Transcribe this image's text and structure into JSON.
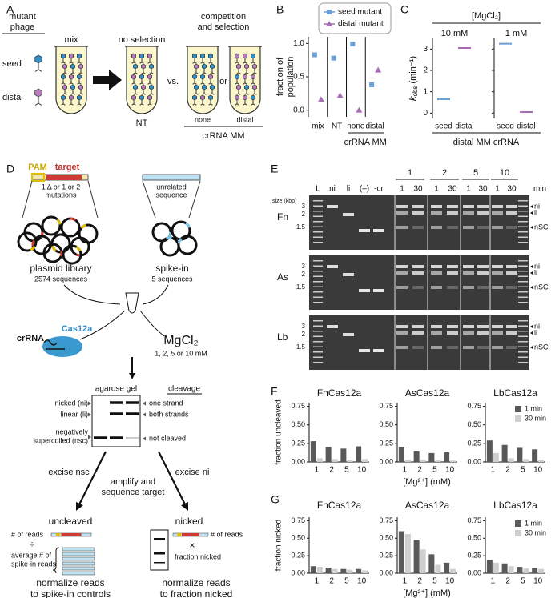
{
  "panel_labels": [
    "A",
    "B",
    "C",
    "D",
    "E",
    "F",
    "G"
  ],
  "panel_a": {
    "mutant_phage": [
      "mutant",
      "phage"
    ],
    "seed": "seed",
    "distal": "distal",
    "mix": "mix",
    "no_selection": "no selection",
    "vs": "vs.",
    "competition": [
      "competition",
      "and selection"
    ],
    "or": "or",
    "nt": "NT",
    "none": "none",
    "distal_mm": "distal",
    "crrna_mm": "crRNA MM"
  },
  "panel_d": {
    "pam": "PAM",
    "target": "target",
    "mutations": [
      "1 Δ or 1 or 2",
      "mutations"
    ],
    "unrelated": [
      "unrelated",
      "sequence"
    ],
    "library": "plasmid library",
    "library_count": "2574 sequences",
    "spike_in": "spike-in",
    "spike_count": "5 sequences",
    "crrna": "crRNA",
    "cas12a": "Cas12a",
    "mgcl2": "MgCl₂",
    "mg_conc": "1, 2, 5 or 10 mM",
    "gel_title": "agarose gel",
    "cleavage": "cleavage",
    "gel_bands": [
      "nicked (ni)",
      "linear (li)",
      "negatively",
      "supercoiled (nsc)"
    ],
    "cleavage_types": [
      "one strand",
      "both strands",
      "not cleaved"
    ],
    "excise_nsc": "excise nsc",
    "excise_ni": "excise ni",
    "amplify": [
      "amplify and",
      "sequence target"
    ],
    "uncleaved": "uncleaved",
    "nicked": "nicked",
    "reads_left": "# of reads",
    "divide": "÷",
    "spike_reads": [
      "average # of",
      "spike-in reads"
    ],
    "reads_right": "# of reads",
    "times": "×",
    "fraction_nicked": "fraction nicked",
    "norm_left": [
      "normalize reads",
      "to spike-in controls"
    ],
    "norm_right": [
      "normalize reads",
      "to fraction nicked"
    ]
  },
  "panel_e": {
    "groups": [
      "1",
      "2",
      "5",
      "10"
    ],
    "lanes": [
      "L",
      "ni",
      "li",
      "(–)",
      "-cr",
      "1",
      "30",
      "1",
      "30",
      "1",
      "30",
      "1",
      "30"
    ],
    "min": "min",
    "size_label": "size (kbp)",
    "rows": [
      "Fn",
      "As",
      "Lb"
    ],
    "sizes": [
      "3",
      "2",
      "1.5"
    ],
    "bands": [
      "ni",
      "li",
      "nSC"
    ]
  },
  "chart_data": [
    {
      "type": "dot",
      "ylabel": [
        "fraction of",
        "population"
      ],
      "categories": [
        "mix",
        "NT",
        "none",
        "distal"
      ],
      "group_label": "crRNA MM",
      "ylim": [
        -0.1,
        1.1
      ],
      "yticks": [
        {
          "value": 0,
          "label": "0.0"
        },
        {
          "value": 0.5,
          "label": "0.5"
        },
        {
          "value": 1,
          "label": "1.0"
        }
      ],
      "series": [
        {
          "name": "seed mutant",
          "color": "#6a9fd8",
          "values": [
            0.83,
            0.78,
            0.99,
            0.38
          ]
        },
        {
          "name": "distal mutant",
          "color": "#a86bb5",
          "values": [
            0.16,
            0.22,
            0.0,
            0.6
          ]
        }
      ]
    },
    {
      "type": "dot",
      "title": "[MgCl₂]",
      "ylabel": [
        "k",
        "obs",
        " (min⁻¹)"
      ],
      "xlabel": "distal MM crRNA",
      "categories": [
        "seed",
        "distal"
      ],
      "colors": [
        "#6a9fd8",
        "#a86bb5"
      ],
      "ylim": [
        -0.25,
        3.5
      ],
      "yticks": [
        0,
        1,
        2,
        3
      ],
      "subplots": [
        {
          "title": "10 mM",
          "values": [
            0.65,
            3.05
          ]
        },
        {
          "title": "1 mM",
          "values": [
            3.25,
            0.05
          ]
        }
      ]
    },
    {
      "type": "bar",
      "ylabel": "fraction uncleaved",
      "xlabel": "[Mg²⁺] (mM)",
      "categories": [
        "1",
        "2",
        "5",
        "10"
      ],
      "ylim": [
        0,
        0.8
      ],
      "yticks": [
        {
          "value": 0,
          "label": "0.00"
        },
        {
          "value": 0.25,
          "label": "0.25"
        },
        {
          "value": 0.5,
          "label": "0.50"
        },
        {
          "value": 0.75,
          "label": "0.75"
        }
      ],
      "subplots": [
        {
          "title": "FnCas12a",
          "series": [
            {
              "name": "1 min",
              "color": "#595959",
              "values": [
                0.28,
                0.2,
                0.18,
                0.21
              ]
            },
            {
              "name": "30 min",
              "color": "#cfcfcf",
              "values": [
                0.05,
                0.04,
                0.03,
                0.04
              ]
            }
          ]
        },
        {
          "title": "AsCas12a",
          "series": [
            {
              "name": "1 min",
              "color": "#595959",
              "values": [
                0.2,
                0.15,
                0.12,
                0.13
              ]
            },
            {
              "name": "30 min",
              "color": "#cfcfcf",
              "values": [
                0.03,
                0.03,
                0.02,
                0.02
              ]
            }
          ]
        },
        {
          "title": "LbCas12a",
          "series": [
            {
              "name": "1 min",
              "color": "#595959",
              "values": [
                0.29,
                0.23,
                0.19,
                0.17
              ]
            },
            {
              "name": "30 min",
              "color": "#cfcfcf",
              "values": [
                0.12,
                0.05,
                0.04,
                0.03
              ]
            }
          ]
        }
      ]
    },
    {
      "type": "bar",
      "ylabel": "fraction nicked",
      "xlabel": "[Mg²⁺] (mM)",
      "categories": [
        "1",
        "2",
        "5",
        "10"
      ],
      "ylim": [
        0,
        0.8
      ],
      "yticks": [
        {
          "value": 0,
          "label": "0.00"
        },
        {
          "value": 0.25,
          "label": "0.25"
        },
        {
          "value": 0.5,
          "label": "0.50"
        },
        {
          "value": 0.75,
          "label": "0.75"
        }
      ],
      "subplots": [
        {
          "title": "FnCas12a",
          "series": [
            {
              "name": "1 min",
              "color": "#595959",
              "values": [
                0.1,
                0.08,
                0.06,
                0.06
              ]
            },
            {
              "name": "30 min",
              "color": "#cfcfcf",
              "values": [
                0.09,
                0.06,
                0.05,
                0.04
              ]
            }
          ]
        },
        {
          "title": "AsCas12a",
          "series": [
            {
              "name": "1 min",
              "color": "#595959",
              "values": [
                0.6,
                0.48,
                0.27,
                0.15
              ]
            },
            {
              "name": "30 min",
              "color": "#cfcfcf",
              "values": [
                0.56,
                0.34,
                0.12,
                0.06
              ]
            }
          ]
        },
        {
          "title": "LbCas12a",
          "series": [
            {
              "name": "1 min",
              "color": "#595959",
              "values": [
                0.19,
                0.14,
                0.09,
                0.08
              ]
            },
            {
              "name": "30 min",
              "color": "#cfcfcf",
              "values": [
                0.15,
                0.1,
                0.07,
                0.06
              ]
            }
          ]
        }
      ]
    }
  ]
}
